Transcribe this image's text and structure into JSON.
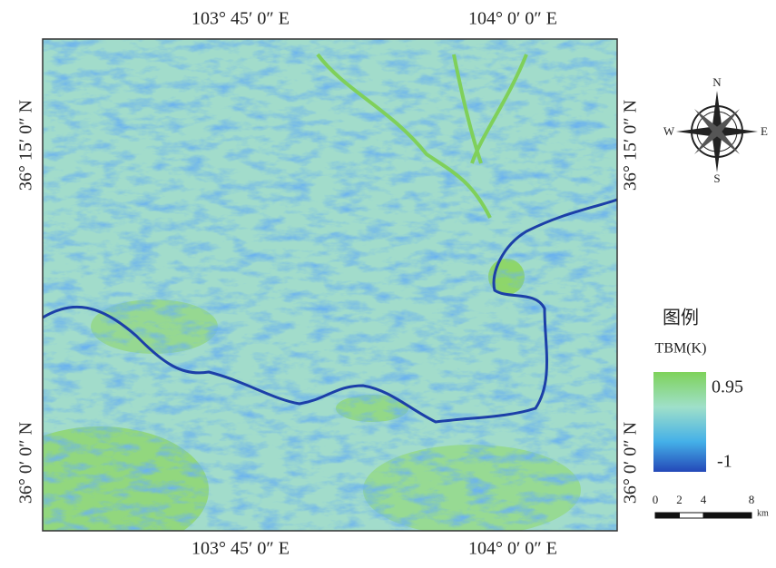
{
  "map": {
    "top_labels": [
      "103° 45′ 0″ E",
      "104° 0′ 0″ E"
    ],
    "bottom_labels": [
      "103° 45′ 0″ E",
      "104° 0′ 0″ E"
    ],
    "left_labels": [
      "36° 15′ 0″ N",
      "36° 0′ 0″ N"
    ],
    "right_labels": [
      "36° 15′ 0″ N",
      "36° 0′ 0″ N"
    ]
  },
  "compass": {
    "north": "N",
    "south": "S",
    "east": "E",
    "west": "W"
  },
  "legend": {
    "title": "图例",
    "unit": "TBM(K)",
    "max": 0.95,
    "min": -1
  },
  "scale_bar": {
    "ticks": [
      0,
      2,
      4,
      8
    ],
    "unit": "km"
  }
}
